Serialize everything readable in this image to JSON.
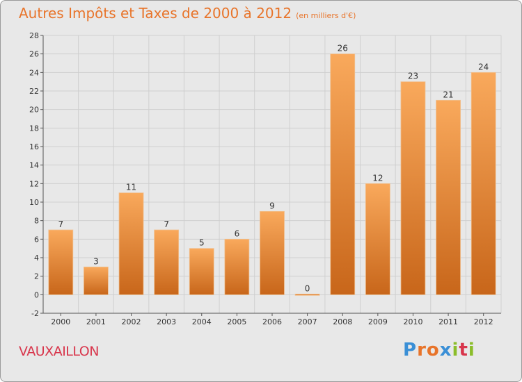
{
  "title": "Autres Impôts et Taxes de 2000 à 2012",
  "subtitle": "(en milliers d'€)",
  "commune": "VAUXAILLON",
  "logo": {
    "letters": [
      "P",
      "r",
      "o",
      "x",
      "i",
      "t",
      "i"
    ],
    "colors": [
      "#3a8fd6",
      "#e8742a",
      "#e8742a",
      "#3a8fd6",
      "#8bbd2a",
      "#d8364c",
      "#8bbd2a"
    ]
  },
  "chart_data": {
    "type": "bar",
    "categories": [
      "2000",
      "2001",
      "2002",
      "2003",
      "2004",
      "2005",
      "2006",
      "2007",
      "2008",
      "2009",
      "2010",
      "2011",
      "2012"
    ],
    "values": [
      7,
      3,
      11,
      7,
      5,
      6,
      9,
      0,
      26,
      12,
      23,
      21,
      24
    ],
    "data_labels": [
      "7",
      "3",
      "11",
      "7",
      "5",
      "6",
      "9",
      "0",
      "26",
      "12",
      "23",
      "21",
      "24"
    ],
    "ylim": [
      -2,
      28
    ],
    "yticks": [
      -2,
      0,
      2,
      4,
      6,
      8,
      10,
      12,
      14,
      16,
      18,
      20,
      22,
      24,
      26,
      28
    ],
    "grid": true,
    "colors": {
      "bar_top": "#f9a95c",
      "bar_bottom": "#c8661a",
      "grid": "#cfcfcf",
      "text": "#333333"
    }
  }
}
